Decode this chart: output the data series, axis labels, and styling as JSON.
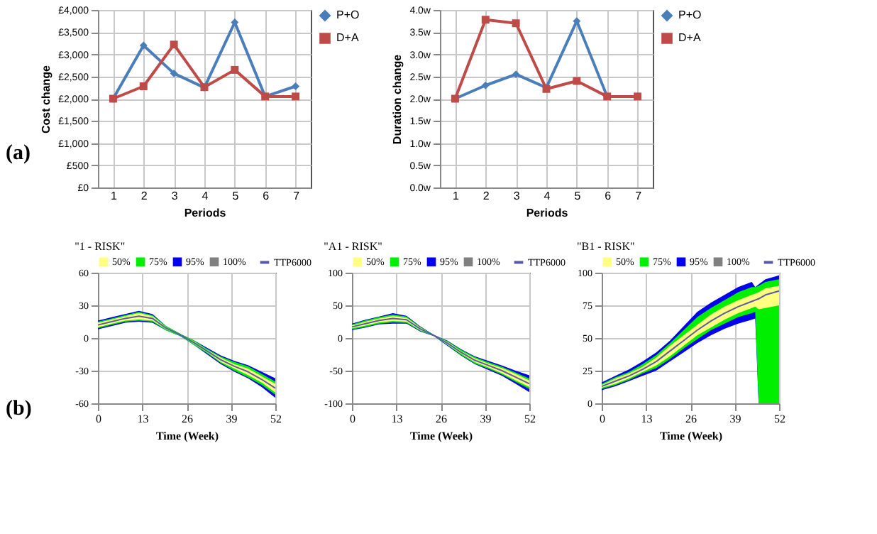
{
  "chart_data": [
    {
      "type": "line",
      "xlabel": "Periods",
      "ylabel": "Cost change",
      "categories": [
        "1",
        "2",
        "3",
        "4",
        "5",
        "6",
        "7"
      ],
      "ylim": [
        0,
        4000
      ],
      "yticks": [
        {
          "value": 0,
          "label": "£0"
        },
        {
          "value": 500,
          "label": "£500"
        },
        {
          "value": 1000,
          "label": "£1,000"
        },
        {
          "value": 1500,
          "label": "£1,500"
        },
        {
          "value": 2000,
          "label": "£2,000"
        },
        {
          "value": 2500,
          "label": "£2,500"
        },
        {
          "value": 3000,
          "label": "£3,000"
        },
        {
          "value": 3500,
          "label": "£3,500"
        },
        {
          "value": 4000,
          "label": "£4,000"
        }
      ],
      "grid": true,
      "legend": "right",
      "annotations": [
        "(a)"
      ],
      "series": [
        {
          "name": "P+O",
          "color": "#4a7ebb",
          "marker": "diamond",
          "values": [
            2000,
            3200,
            2570,
            2250,
            3720,
            2050,
            2280
          ]
        },
        {
          "name": "D+A",
          "color": "#be4b48",
          "marker": "square",
          "values": [
            2000,
            2280,
            3220,
            2260,
            2650,
            2050,
            2050
          ]
        }
      ]
    },
    {
      "type": "line",
      "xlabel": "Periods",
      "ylabel": "Duration change",
      "categories": [
        "1",
        "2",
        "3",
        "4",
        "5",
        "6",
        "7"
      ],
      "ylim": [
        0,
        4
      ],
      "yticks": [
        {
          "value": 0,
          "label": "0.0w"
        },
        {
          "value": 0.5,
          "label": "0.5w"
        },
        {
          "value": 1,
          "label": "1.0w"
        },
        {
          "value": 1.5,
          "label": "1.5w"
        },
        {
          "value": 2,
          "label": "2.0w"
        },
        {
          "value": 2.5,
          "label": "2.5w"
        },
        {
          "value": 3,
          "label": "3.0w"
        },
        {
          "value": 3.5,
          "label": "3.5w"
        },
        {
          "value": 4,
          "label": "4.0w"
        }
      ],
      "grid": true,
      "legend": "right",
      "series": [
        {
          "name": "P+O",
          "color": "#4a7ebb",
          "marker": "diamond",
          "values": [
            2.0,
            2.3,
            2.55,
            2.25,
            3.75,
            2.05,
            2.05
          ]
        },
        {
          "name": "D+A",
          "color": "#be4b48",
          "marker": "square",
          "values": [
            2.0,
            3.78,
            3.7,
            2.22,
            2.4,
            2.05,
            2.05
          ]
        }
      ]
    },
    {
      "type": "line",
      "title": "\"1 - RISK\"",
      "xlabel": "Time (Week)",
      "x": [
        0,
        4,
        8,
        12,
        16,
        20,
        24,
        28,
        32,
        36,
        40,
        44,
        48,
        52
      ],
      "xlim": [
        0,
        52
      ],
      "xticks": [
        0,
        13,
        26,
        39,
        52
      ],
      "ylim": [
        -60,
        60
      ],
      "yticks": [
        -60,
        -30,
        0,
        30,
        60
      ],
      "grid": true,
      "legend": "top",
      "annotations": [
        "(b)"
      ],
      "series": [
        {
          "name": "TTP6000",
          "color": "#5a5aaa",
          "values": [
            12,
            15,
            18,
            20,
            18,
            9,
            3,
            -4,
            -12,
            -20,
            -26,
            -31,
            -38,
            -46
          ]
        },
        {
          "name": "50%",
          "color": "#ffff80",
          "values": [
            null,
            null,
            null,
            null,
            null,
            null,
            null,
            null,
            null,
            null,
            null,
            null,
            null,
            null
          ],
          "lower": [
            10,
            13,
            16,
            17,
            16,
            8,
            3,
            -5,
            -13,
            -22,
            -28,
            -34,
            -41,
            -50
          ],
          "upper": [
            14,
            17,
            20,
            23,
            20,
            10,
            3,
            -3,
            -11,
            -18,
            -24,
            -28,
            -35,
            -42
          ]
        },
        {
          "name": "75%",
          "color": "#00ee00",
          "values": [
            null,
            null,
            null,
            null,
            null,
            null,
            null,
            null,
            null,
            null,
            null,
            null,
            null,
            null
          ],
          "lower": [
            9,
            12,
            15,
            16,
            15,
            7,
            2,
            -6,
            -14,
            -23,
            -30,
            -36,
            -43,
            -52
          ],
          "upper": [
            15,
            18,
            21,
            24,
            21,
            11,
            4,
            -2,
            -10,
            -17,
            -22,
            -26,
            -33,
            -40
          ]
        },
        {
          "name": "95%",
          "color": "#0000ee",
          "values": [
            null,
            null,
            null,
            null,
            null,
            null,
            null,
            null,
            null,
            null,
            null,
            null,
            null,
            null
          ],
          "lower": [
            8,
            11,
            14,
            15,
            14,
            7,
            2,
            -6,
            -15,
            -24,
            -31,
            -37,
            -45,
            -55
          ],
          "upper": [
            16,
            19,
            22,
            25,
            22,
            11,
            4,
            -2,
            -9,
            -16,
            -21,
            -25,
            -31,
            -37
          ]
        },
        {
          "name": "100%",
          "color": "#808080",
          "values": [
            null,
            null,
            null,
            null,
            null,
            null,
            null,
            null,
            null,
            null,
            null,
            null,
            null,
            null
          ],
          "lower": [
            null,
            null,
            null,
            null,
            null,
            null,
            null,
            null,
            null,
            null,
            null,
            null,
            null,
            null
          ],
          "upper": [
            null,
            null,
            null,
            null,
            null,
            null,
            null,
            null,
            null,
            null,
            null,
            null,
            null,
            null
          ]
        }
      ]
    },
    {
      "type": "line",
      "title": "\"A1 - RISK\"",
      "xlabel": "Time (Week)",
      "x": [
        0,
        4,
        8,
        12,
        16,
        20,
        24,
        28,
        32,
        36,
        40,
        44,
        48,
        52
      ],
      "xlim": [
        0,
        52
      ],
      "xticks": [
        0,
        13,
        26,
        39,
        52
      ],
      "ylim": [
        -100,
        100
      ],
      "yticks": [
        -100,
        -50,
        0,
        50,
        100
      ],
      "grid": true,
      "legend": "top",
      "series": [
        {
          "name": "TTP6000",
          "color": "#5a5aaa",
          "values": [
            17,
            22,
            27,
            30,
            28,
            14,
            4,
            -8,
            -22,
            -34,
            -42,
            -50,
            -60,
            -70
          ]
        },
        {
          "name": "50%",
          "color": "#ffff80",
          "values": [
            null,
            null,
            null,
            null,
            null,
            null,
            null,
            null,
            null,
            null,
            null,
            null,
            null,
            null
          ],
          "lower": [
            15,
            19,
            24,
            26,
            25,
            12,
            4,
            -10,
            -24,
            -37,
            -45,
            -54,
            -65,
            -75
          ],
          "upper": [
            19,
            25,
            30,
            34,
            31,
            16,
            4,
            -6,
            -20,
            -31,
            -39,
            -46,
            -55,
            -65
          ]
        },
        {
          "name": "75%",
          "color": "#00ee00",
          "values": [
            null,
            null,
            null,
            null,
            null,
            null,
            null,
            null,
            null,
            null,
            null,
            null,
            null,
            null
          ],
          "lower": [
            13,
            17,
            22,
            24,
            23,
            11,
            3,
            -11,
            -26,
            -39,
            -47,
            -56,
            -67,
            -78
          ],
          "upper": [
            21,
            27,
            32,
            36,
            33,
            17,
            5,
            -5,
            -18,
            -29,
            -37,
            -44,
            -53,
            -62
          ]
        },
        {
          "name": "95%",
          "color": "#0000ee",
          "values": [
            null,
            null,
            null,
            null,
            null,
            null,
            null,
            null,
            null,
            null,
            null,
            null,
            null,
            null
          ],
          "lower": [
            12,
            16,
            21,
            22,
            22,
            10,
            3,
            -12,
            -27,
            -40,
            -49,
            -58,
            -70,
            -83
          ],
          "upper": [
            22,
            28,
            33,
            38,
            34,
            18,
            5,
            -4,
            -17,
            -28,
            -35,
            -42,
            -50,
            -57
          ]
        },
        {
          "name": "100%",
          "color": "#808080",
          "values": [
            null,
            null,
            null,
            null,
            null,
            null,
            null,
            null,
            null,
            null,
            null,
            null,
            null,
            null
          ],
          "lower": [
            null,
            null,
            null,
            null,
            null,
            null,
            null,
            null,
            null,
            null,
            null,
            null,
            null,
            null
          ],
          "upper": [
            null,
            null,
            null,
            null,
            null,
            null,
            null,
            null,
            null,
            null,
            null,
            null,
            null,
            null
          ]
        }
      ]
    },
    {
      "type": "line",
      "title": "\"B1 - RISK\"",
      "xlabel": "Time (Week)",
      "x": [
        0,
        4,
        8,
        12,
        16,
        20,
        24,
        28,
        32,
        36,
        40,
        44,
        45,
        46,
        48,
        52
      ],
      "xlim": [
        0,
        52
      ],
      "xticks": [
        0,
        13,
        26,
        39,
        52
      ],
      "ylim": [
        0,
        100
      ],
      "yticks": [
        0,
        25,
        50,
        75,
        100
      ],
      "grid": true,
      "legend": "top",
      "series": [
        {
          "name": "TTP6000",
          "color": "#5a5aaa",
          "values": [
            13,
            17,
            21,
            26,
            32,
            40,
            48,
            56,
            63,
            69,
            74,
            78,
            79,
            80,
            83,
            86
          ]
        },
        {
          "name": "50%",
          "color": "#ffff80",
          "values": [
            null,
            null,
            null,
            null,
            null,
            null,
            null,
            null,
            null,
            null,
            null,
            null,
            null,
            null,
            null,
            null
          ],
          "lower": [
            12,
            15,
            19,
            24,
            29,
            36,
            44,
            52,
            58,
            64,
            69,
            73,
            74,
            72,
            73,
            75
          ],
          "upper": [
            14,
            19,
            23,
            28,
            35,
            44,
            52,
            60,
            68,
            74,
            79,
            83,
            84,
            85,
            88,
            90
          ]
        },
        {
          "name": "75%",
          "color": "#00ee00",
          "values": [
            null,
            null,
            null,
            null,
            null,
            null,
            null,
            null,
            null,
            null,
            null,
            null,
            null,
            null,
            null,
            null
          ],
          "lower": [
            11,
            14,
            18,
            23,
            27,
            34,
            42,
            49,
            56,
            61,
            66,
            69,
            70,
            0,
            0,
            0
          ],
          "upper": [
            15,
            20,
            24,
            30,
            37,
            46,
            56,
            66,
            73,
            79,
            85,
            89,
            89,
            90,
            93,
            95
          ]
        },
        {
          "name": "95%",
          "color": "#0000ee",
          "values": [
            null,
            null,
            null,
            null,
            null,
            null,
            null,
            null,
            null,
            null,
            null,
            null,
            null,
            null,
            null,
            null
          ],
          "lower": [
            10,
            13,
            17,
            21,
            25,
            32,
            39,
            46,
            52,
            57,
            61,
            64,
            65,
            0,
            0,
            0
          ],
          "upper": [
            16,
            21,
            26,
            32,
            39,
            48,
            59,
            70,
            77,
            83,
            89,
            93,
            89,
            91,
            95,
            98
          ]
        },
        {
          "name": "100%",
          "color": "#808080",
          "values": [
            null,
            null,
            null,
            null,
            null,
            null,
            null,
            null,
            null,
            null,
            null,
            null,
            null,
            null,
            null,
            null
          ],
          "lower": [
            null,
            null,
            null,
            null,
            null,
            null,
            null,
            null,
            null,
            null,
            null,
            null,
            null,
            null,
            null,
            null
          ],
          "upper": [
            null,
            null,
            null,
            null,
            null,
            null,
            null,
            null,
            null,
            null,
            null,
            null,
            null,
            null,
            null,
            null
          ]
        }
      ]
    }
  ]
}
